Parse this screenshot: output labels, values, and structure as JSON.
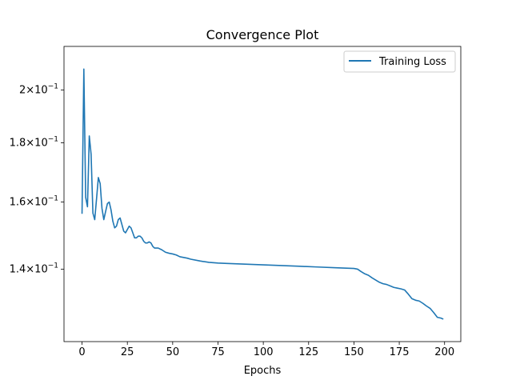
{
  "chart_data": {
    "type": "line",
    "title": "Convergence Plot",
    "xlabel": "Epochs",
    "ylabel": "",
    "xlim": [
      -9.95,
      208.95
    ],
    "ylim": [
      0.1212,
      0.2181
    ],
    "yscale": "log",
    "grid": false,
    "legend_position": "top-right",
    "x_ticks": [
      {
        "value": 0,
        "label": "0"
      },
      {
        "value": 25,
        "label": "25"
      },
      {
        "value": 50,
        "label": "50"
      },
      {
        "value": 75,
        "label": "75"
      },
      {
        "value": 100,
        "label": "100"
      },
      {
        "value": 125,
        "label": "125"
      },
      {
        "value": 150,
        "label": "150"
      },
      {
        "value": 175,
        "label": "175"
      },
      {
        "value": 200,
        "label": "200"
      }
    ],
    "y_ticks": [
      {
        "value": 0.14,
        "base": "1.4",
        "exp": "−1"
      },
      {
        "value": 0.16,
        "base": "1.6",
        "exp": "−1"
      },
      {
        "value": 0.18,
        "base": "1.8",
        "exp": "−1"
      },
      {
        "value": 0.2,
        "base": "2",
        "exp": "−1"
      }
    ],
    "series": [
      {
        "name": "Training Loss",
        "color": "#1f77b4",
        "points": [
          [
            0,
            0.1565
          ],
          [
            1,
            0.2085
          ],
          [
            2,
            0.1615
          ],
          [
            3,
            0.1585
          ],
          [
            4,
            0.1825
          ],
          [
            5,
            0.176
          ],
          [
            6,
            0.1565
          ],
          [
            7,
            0.1545
          ],
          [
            8,
            0.161
          ],
          [
            9,
            0.168
          ],
          [
            10,
            0.166
          ],
          [
            11,
            0.158
          ],
          [
            12,
            0.1545
          ],
          [
            13,
            0.157
          ],
          [
            14,
            0.1595
          ],
          [
            15,
            0.16
          ],
          [
            16,
            0.1575
          ],
          [
            17,
            0.154
          ],
          [
            18,
            0.152
          ],
          [
            19,
            0.1525
          ],
          [
            20,
            0.1545
          ],
          [
            21,
            0.155
          ],
          [
            22,
            0.153
          ],
          [
            23,
            0.151
          ],
          [
            24,
            0.1505
          ],
          [
            25,
            0.1515
          ],
          [
            26,
            0.1525
          ],
          [
            27,
            0.152
          ],
          [
            28,
            0.1505
          ],
          [
            29,
            0.149
          ],
          [
            30,
            0.149
          ],
          [
            31,
            0.1495
          ],
          [
            32,
            0.1495
          ],
          [
            33,
            0.149
          ],
          [
            34,
            0.148
          ],
          [
            35,
            0.1475
          ],
          [
            36,
            0.1475
          ],
          [
            37,
            0.1478
          ],
          [
            38,
            0.1475
          ],
          [
            39,
            0.1465
          ],
          [
            40,
            0.146
          ],
          [
            42,
            0.146
          ],
          [
            44,
            0.1455
          ],
          [
            46,
            0.1448
          ],
          [
            48,
            0.1445
          ],
          [
            50,
            0.1443
          ],
          [
            52,
            0.144
          ],
          [
            54,
            0.1435
          ],
          [
            56,
            0.1433
          ],
          [
            58,
            0.1431
          ],
          [
            60,
            0.1428
          ],
          [
            65,
            0.1423
          ],
          [
            70,
            0.1419
          ],
          [
            75,
            0.1417
          ],
          [
            80,
            0.1416
          ],
          [
            90,
            0.1414
          ],
          [
            100,
            0.1412
          ],
          [
            110,
            0.141
          ],
          [
            120,
            0.1408
          ],
          [
            130,
            0.1406
          ],
          [
            140,
            0.1404
          ],
          [
            150,
            0.1402
          ],
          [
            152,
            0.14
          ],
          [
            154,
            0.1393
          ],
          [
            156,
            0.1387
          ],
          [
            158,
            0.1383
          ],
          [
            160,
            0.1376
          ],
          [
            162,
            0.137
          ],
          [
            164,
            0.1364
          ],
          [
            166,
            0.136
          ],
          [
            168,
            0.1358
          ],
          [
            170,
            0.1354
          ],
          [
            172,
            0.135
          ],
          [
            174,
            0.1348
          ],
          [
            176,
            0.1346
          ],
          [
            178,
            0.1343
          ],
          [
            180,
            0.1332
          ],
          [
            182,
            0.132
          ],
          [
            184,
            0.1316
          ],
          [
            186,
            0.1314
          ],
          [
            188,
            0.1308
          ],
          [
            190,
            0.1301
          ],
          [
            192,
            0.1295
          ],
          [
            194,
            0.1284
          ],
          [
            196,
            0.1272
          ],
          [
            198,
            0.127
          ],
          [
            199,
            0.1268
          ]
        ]
      }
    ]
  }
}
